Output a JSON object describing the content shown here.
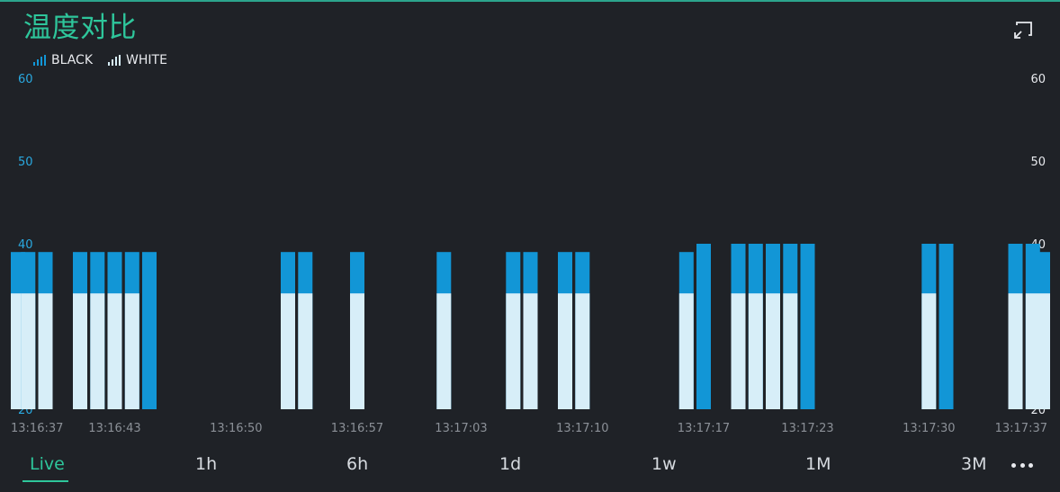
{
  "chart": {
    "title": "温度对比"
  },
  "legend": [
    {
      "name": "BLACK",
      "color": "#1296d6"
    },
    {
      "name": "WHITE",
      "color": "#d7eef8"
    }
  ],
  "axis_left": {
    "labels": [
      "60",
      "50",
      "40",
      "30",
      "20"
    ]
  },
  "axis_right": {
    "labels": [
      "60",
      "50",
      "40",
      "30",
      "20"
    ]
  },
  "chart_data": {
    "type": "bar",
    "ylim": [
      20,
      60
    ],
    "grid": false,
    "legend_placement": "top-left",
    "x_tick_labels": [
      "13:16:37",
      "13:16:43",
      "13:16:50",
      "13:16:57",
      "13:17:03",
      "13:17:10",
      "13:17:17",
      "13:17:23",
      "13:17:30",
      "13:17:37"
    ],
    "bars": [
      {
        "time": "13:16:37",
        "BLACK": 39,
        "WHITE": 34
      },
      {
        "time": "13:16:38",
        "BLACK": 39,
        "WHITE": 34
      },
      {
        "time": "13:16:39",
        "BLACK": 39,
        "WHITE": 34
      },
      {
        "time": "13:16:41",
        "BLACK": 39,
        "WHITE": 34
      },
      {
        "time": "13:16:42",
        "BLACK": 39,
        "WHITE": 34
      },
      {
        "time": "13:16:43",
        "BLACK": 39,
        "WHITE": 34
      },
      {
        "time": "13:16:44",
        "BLACK": 39,
        "WHITE": 34
      },
      {
        "time": "13:16:45",
        "BLACK": 39,
        "WHITE": null
      },
      {
        "time": "13:16:53",
        "BLACK": 39,
        "WHITE": 34
      },
      {
        "time": "13:16:54",
        "BLACK": 39,
        "WHITE": 34
      },
      {
        "time": "13:16:57",
        "BLACK": 39,
        "WHITE": 34
      },
      {
        "time": "13:17:02",
        "BLACK": 39,
        "WHITE": 34
      },
      {
        "time": "13:17:06",
        "BLACK": 39,
        "WHITE": 34
      },
      {
        "time": "13:17:07",
        "BLACK": 39,
        "WHITE": 34
      },
      {
        "time": "13:17:09",
        "BLACK": 39,
        "WHITE": 34
      },
      {
        "time": "13:17:10",
        "BLACK": 39,
        "WHITE": 34
      },
      {
        "time": "13:17:16",
        "BLACK": 39,
        "WHITE": 34
      },
      {
        "time": "13:17:17",
        "BLACK": 40,
        "WHITE": null
      },
      {
        "time": "13:17:19",
        "BLACK": 40,
        "WHITE": 34
      },
      {
        "time": "13:17:20",
        "BLACK": 40,
        "WHITE": 34
      },
      {
        "time": "13:17:21",
        "BLACK": 40,
        "WHITE": 34
      },
      {
        "time": "13:17:22",
        "BLACK": 40,
        "WHITE": 34
      },
      {
        "time": "13:17:23",
        "BLACK": 40,
        "WHITE": null
      },
      {
        "time": "13:17:30",
        "BLACK": 40,
        "WHITE": 34
      },
      {
        "time": "13:17:31",
        "BLACK": 40,
        "WHITE": null
      },
      {
        "time": "13:17:35",
        "BLACK": 40,
        "WHITE": 34
      },
      {
        "time": "13:17:36",
        "BLACK": 40,
        "WHITE": 34
      },
      {
        "time": "13:17:37",
        "BLACK": 39,
        "WHITE": 34
      }
    ],
    "series": [
      {
        "name": "BLACK",
        "color": "#1296d6"
      },
      {
        "name": "WHITE",
        "color": "#d7eef8"
      }
    ]
  },
  "tabs": [
    {
      "label": "Live",
      "active": true
    },
    {
      "label": "1h",
      "active": false
    },
    {
      "label": "6h",
      "active": false
    },
    {
      "label": "1d",
      "active": false
    },
    {
      "label": "1w",
      "active": false
    },
    {
      "label": "1M",
      "active": false
    },
    {
      "label": "3M",
      "active": false
    }
  ],
  "icons": {
    "expand": "expand-icon",
    "more": "more-icon"
  },
  "colors": {
    "background": "#1f2227",
    "accent": "#2ec69b",
    "black_series": "#1296d6",
    "white_series": "#d7eef8"
  }
}
